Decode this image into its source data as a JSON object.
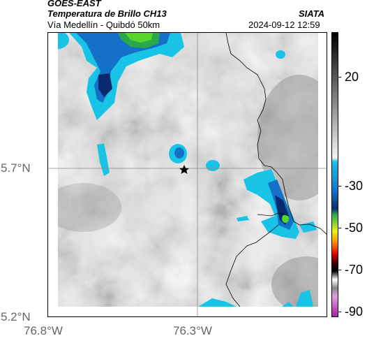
{
  "header": {
    "satellite": "GOES-EAST",
    "product": "Temperatura de Brillo CH13",
    "route": "Vía Medellín - Quibdó 50km",
    "agency": "SIATA",
    "timestamp": "2024-09-12 12:59"
  },
  "axes": {
    "lat_labels": [
      "5.7°N",
      "5.2°N"
    ],
    "lon_labels": [
      "76.8°W",
      "76.3°W"
    ]
  },
  "colorbar": {
    "ticks": [
      "20",
      "-30",
      "-50",
      "-70",
      "-90"
    ]
  },
  "colors": {
    "cloud_cyan": "#19c3e6",
    "cloud_blue": "#1570c8",
    "cloud_navy": "#0a2a6e",
    "cloud_green": "#55d62b",
    "cloud_yellow": "#e8f21a",
    "border_line": "#000000"
  },
  "map": {
    "marker_icon": "star-icon"
  }
}
